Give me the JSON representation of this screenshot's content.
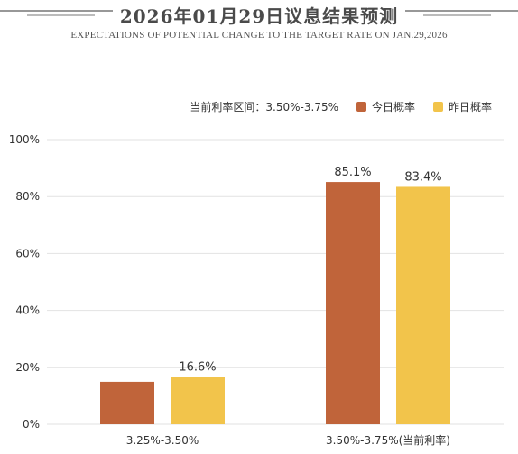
{
  "header": {
    "title": "2026年01月29日议息结果预测",
    "subtitle": "EXPECTATIONS OF POTENTIAL CHANGE TO THE TARGET RATE ON JAN.29,2026"
  },
  "legend": {
    "current_range_label": "当前利率区间：3.50%-3.75%",
    "today_label": "今日概率",
    "yesterday_label": "昨日概率"
  },
  "colors": {
    "today": "#c0643a",
    "yesterday": "#f2c44b",
    "grid": "#e2e2e2",
    "text": "#333333"
  },
  "chart_data": {
    "type": "bar",
    "categories": [
      "3.25%-3.50%",
      "3.50%-3.75%(当前利率)"
    ],
    "series": [
      {
        "name": "今日概率",
        "values": [
          14.9,
          85.1
        ],
        "labels": [
          "",
          "85.1%"
        ]
      },
      {
        "name": "昨日概率",
        "values": [
          16.6,
          83.4
        ],
        "labels": [
          "16.6%",
          "83.4%"
        ]
      }
    ],
    "yticks": [
      "0%",
      "20%",
      "40%",
      "60%",
      "80%",
      "100%"
    ],
    "ylim": [
      0,
      100
    ],
    "grid": true,
    "legend_position": "top-right"
  }
}
